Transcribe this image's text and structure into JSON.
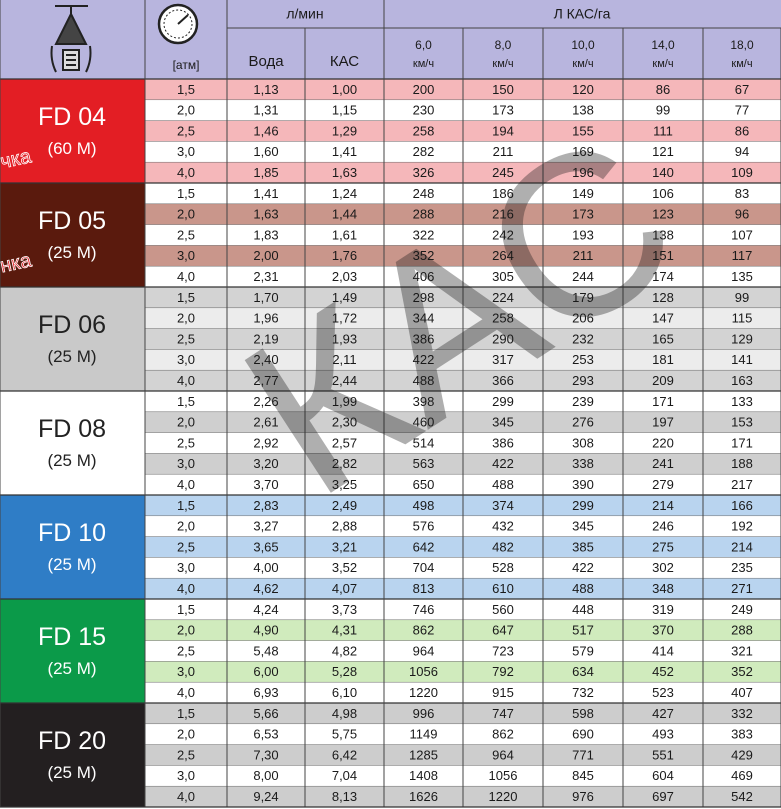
{
  "header": {
    "flow_unit": "л/мин",
    "rate_unit": "Л КАС/га",
    "pressure_unit": "[атм]",
    "columns": [
      "Вода",
      "КАС"
    ],
    "speeds": [
      {
        "value": "6,0",
        "unit": "км/ч"
      },
      {
        "value": "8,0",
        "unit": "км/ч"
      },
      {
        "value": "10,0",
        "unit": "км/ч"
      },
      {
        "value": "14,0",
        "unit": "км/ч"
      },
      {
        "value": "18,0",
        "unit": "км/ч"
      }
    ]
  },
  "watermark": "КАС",
  "groups": [
    {
      "name": "FD 04",
      "sub": "(60 M)",
      "badge": "чка",
      "rows": [
        [
          "1,5",
          "1,13",
          "1,00",
          "200",
          "150",
          "120",
          "86",
          "67"
        ],
        [
          "2,0",
          "1,31",
          "1,15",
          "230",
          "173",
          "138",
          "99",
          "77"
        ],
        [
          "2,5",
          "1,46",
          "1,29",
          "258",
          "194",
          "155",
          "111",
          "86"
        ],
        [
          "3,0",
          "1,60",
          "1,41",
          "282",
          "211",
          "169",
          "121",
          "94"
        ],
        [
          "4,0",
          "1,85",
          "1,63",
          "326",
          "245",
          "196",
          "140",
          "109"
        ]
      ]
    },
    {
      "name": "FD 05",
      "sub": "(25 M)",
      "badge": "нка",
      "rows": [
        [
          "1,5",
          "1,41",
          "1,24",
          "248",
          "186",
          "149",
          "106",
          "83"
        ],
        [
          "2,0",
          "1,63",
          "1,44",
          "288",
          "216",
          "173",
          "123",
          "96"
        ],
        [
          "2,5",
          "1,83",
          "1,61",
          "322",
          "242",
          "193",
          "138",
          "107"
        ],
        [
          "3,0",
          "2,00",
          "1,76",
          "352",
          "264",
          "211",
          "151",
          "117"
        ],
        [
          "4,0",
          "2,31",
          "2,03",
          "406",
          "305",
          "244",
          "174",
          "135"
        ]
      ]
    },
    {
      "name": "FD 06",
      "sub": "(25 M)",
      "rows": [
        [
          "1,5",
          "1,70",
          "1,49",
          "298",
          "224",
          "179",
          "128",
          "99"
        ],
        [
          "2,0",
          "1,96",
          "1,72",
          "344",
          "258",
          "206",
          "147",
          "115"
        ],
        [
          "2,5",
          "2,19",
          "1,93",
          "386",
          "290",
          "232",
          "165",
          "129"
        ],
        [
          "3,0",
          "2,40",
          "2,11",
          "422",
          "317",
          "253",
          "181",
          "141"
        ],
        [
          "4,0",
          "2,77",
          "2,44",
          "488",
          "366",
          "293",
          "209",
          "163"
        ]
      ]
    },
    {
      "name": "FD 08",
      "sub": "(25 M)",
      "rows": [
        [
          "1,5",
          "2,26",
          "1,99",
          "398",
          "299",
          "239",
          "171",
          "133"
        ],
        [
          "2,0",
          "2,61",
          "2,30",
          "460",
          "345",
          "276",
          "197",
          "153"
        ],
        [
          "2,5",
          "2,92",
          "2,57",
          "514",
          "386",
          "308",
          "220",
          "171"
        ],
        [
          "3,0",
          "3,20",
          "2,82",
          "563",
          "422",
          "338",
          "241",
          "188"
        ],
        [
          "4,0",
          "3,70",
          "3,25",
          "650",
          "488",
          "390",
          "279",
          "217"
        ]
      ]
    },
    {
      "name": "FD 10",
      "sub": "(25 M)",
      "rows": [
        [
          "1,5",
          "2,83",
          "2,49",
          "498",
          "374",
          "299",
          "214",
          "166"
        ],
        [
          "2,0",
          "3,27",
          "2,88",
          "576",
          "432",
          "345",
          "246",
          "192"
        ],
        [
          "2,5",
          "3,65",
          "3,21",
          "642",
          "482",
          "385",
          "275",
          "214"
        ],
        [
          "3,0",
          "4,00",
          "3,52",
          "704",
          "528",
          "422",
          "302",
          "235"
        ],
        [
          "4,0",
          "4,62",
          "4,07",
          "813",
          "610",
          "488",
          "348",
          "271"
        ]
      ]
    },
    {
      "name": "FD 15",
      "sub": "(25 M)",
      "rows": [
        [
          "1,5",
          "4,24",
          "3,73",
          "746",
          "560",
          "448",
          "319",
          "249"
        ],
        [
          "2,0",
          "4,90",
          "4,31",
          "862",
          "647",
          "517",
          "370",
          "288"
        ],
        [
          "2,5",
          "5,48",
          "4,82",
          "964",
          "723",
          "579",
          "414",
          "321"
        ],
        [
          "3,0",
          "6,00",
          "5,28",
          "1056",
          "792",
          "634",
          "452",
          "352"
        ],
        [
          "4,0",
          "6,93",
          "6,10",
          "1220",
          "915",
          "732",
          "523",
          "407"
        ]
      ]
    },
    {
      "name": "FD 20",
      "sub": "(25 M)",
      "rows": [
        [
          "1,5",
          "5,66",
          "4,98",
          "996",
          "747",
          "598",
          "427",
          "332"
        ],
        [
          "2,0",
          "6,53",
          "5,75",
          "1149",
          "862",
          "690",
          "493",
          "383"
        ],
        [
          "2,5",
          "7,30",
          "6,42",
          "1285",
          "964",
          "771",
          "551",
          "429"
        ],
        [
          "3,0",
          "8,00",
          "7,04",
          "1408",
          "1056",
          "845",
          "604",
          "469"
        ],
        [
          "4,0",
          "9,24",
          "8,13",
          "1626",
          "1220",
          "976",
          "697",
          "542"
        ]
      ]
    }
  ]
}
